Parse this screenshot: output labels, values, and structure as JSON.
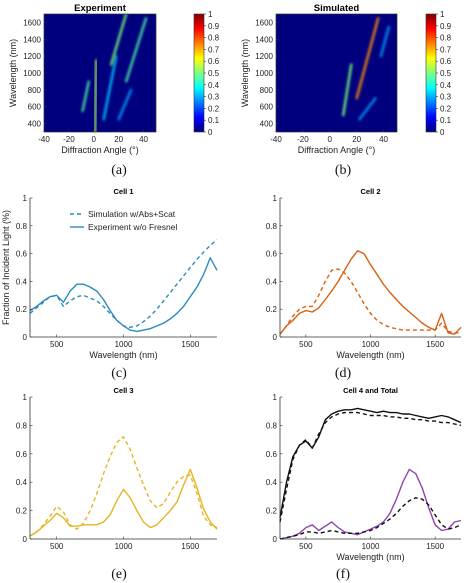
{
  "chart_data": [
    {
      "id": "a",
      "type": "heatmap",
      "panel_label": "(a)",
      "title": "Experiment",
      "xlabel": "Diffraction Angle (°)",
      "ylabel": "Wavelength (nm)",
      "xlim": [
        -40,
        50
      ],
      "ylim": [
        300,
        1700
      ],
      "xticks": [
        -40,
        -20,
        0,
        20,
        40
      ],
      "yticks": [
        400,
        600,
        800,
        1000,
        1200,
        1400,
        1600
      ],
      "colorbar": {
        "ticks": [
          0,
          0.1,
          0.2,
          0.3,
          0.4,
          0.5,
          0.6,
          0.7,
          0.8,
          0.9,
          1
        ],
        "range": [
          0,
          1
        ]
      },
      "colors": [
        "#00007f",
        "#0050ff",
        "#00d0ff",
        "#7fff7f",
        "#ffd000",
        "#ff3000",
        "#7f0000"
      ],
      "streaks": [
        {
          "x": [
            -9,
            -4
          ],
          "y": [
            550,
            900
          ],
          "intensity": 0.45
        },
        {
          "x": [
            1,
            2
          ],
          "y": [
            300,
            1150
          ],
          "intensity": 0.55
        },
        {
          "x": [
            8,
            18
          ],
          "y": [
            450,
            1200
          ],
          "intensity": 0.35
        },
        {
          "x": [
            14,
            26
          ],
          "y": [
            1100,
            1700
          ],
          "intensity": 0.5
        },
        {
          "x": [
            26,
            42
          ],
          "y": [
            900,
            1650
          ],
          "intensity": 0.45
        },
        {
          "x": [
            20,
            30
          ],
          "y": [
            450,
            800
          ],
          "intensity": 0.3
        }
      ]
    },
    {
      "id": "b",
      "type": "heatmap",
      "panel_label": "(b)",
      "title": "Simulated",
      "xlabel": "Diffraction Angle (°)",
      "ylabel": "Wavelength (nm)",
      "xlim": [
        -40,
        50
      ],
      "ylim": [
        300,
        1700
      ],
      "xticks": [
        -40,
        -20,
        0,
        20,
        40
      ],
      "yticks": [
        400,
        600,
        800,
        1000,
        1200,
        1400,
        1600
      ],
      "colorbar": {
        "ticks": [
          0,
          0.1,
          0.2,
          0.3,
          0.4,
          0.5,
          0.6,
          0.7,
          0.8,
          0.9,
          1
        ],
        "range": [
          0,
          1
        ]
      },
      "colors": [
        "#00007f",
        "#0050ff",
        "#00d0ff",
        "#7fff7f",
        "#ffd000",
        "#ff3000",
        "#7f0000"
      ],
      "streaks": [
        {
          "x": [
            0,
            0
          ],
          "y": [
            300,
            1700
          ],
          "intensity": 0.55
        },
        {
          "x": [
            10,
            16
          ],
          "y": [
            500,
            1100
          ],
          "intensity": 0.5
        },
        {
          "x": [
            20,
            36
          ],
          "y": [
            700,
            1650
          ],
          "intensity": 0.75
        },
        {
          "x": [
            22,
            34
          ],
          "y": [
            450,
            700
          ],
          "intensity": 0.3
        },
        {
          "x": [
            38,
            44
          ],
          "y": [
            1200,
            1550
          ],
          "intensity": 0.3
        }
      ]
    },
    {
      "id": "c",
      "type": "line",
      "panel_label": "(c)",
      "title": "Cell 1",
      "xlabel": "Wavelength (nm)",
      "ylabel": "Fraction of Incident Light (%)",
      "xlim": [
        300,
        1700
      ],
      "ylim": [
        0,
        1
      ],
      "xticks": [
        500,
        1000,
        1500
      ],
      "yticks": [
        0,
        0.2,
        0.4,
        0.6,
        0.8,
        1
      ],
      "color": "#2b8cbe",
      "legend": [
        "Simulation w/Abs+Scat",
        "Experiment w/o Fresnel"
      ],
      "series": [
        {
          "name": "Simulation w/Abs+Scat",
          "style": "dashed",
          "x": [
            300,
            350,
            400,
            450,
            500,
            550,
            600,
            650,
            700,
            750,
            800,
            850,
            900,
            950,
            1000,
            1050,
            1100,
            1150,
            1200,
            1250,
            1300,
            1350,
            1400,
            1450,
            1500,
            1550,
            1600,
            1650,
            1700
          ],
          "y": [
            0.17,
            0.21,
            0.25,
            0.29,
            0.3,
            0.22,
            0.26,
            0.29,
            0.3,
            0.28,
            0.26,
            0.22,
            0.17,
            0.12,
            0.08,
            0.07,
            0.08,
            0.11,
            0.15,
            0.2,
            0.26,
            0.32,
            0.38,
            0.44,
            0.5,
            0.56,
            0.61,
            0.66,
            0.7
          ]
        },
        {
          "name": "Experiment w/o Fresnel",
          "style": "solid",
          "x": [
            300,
            350,
            400,
            450,
            500,
            550,
            600,
            650,
            700,
            750,
            800,
            850,
            900,
            950,
            1000,
            1050,
            1100,
            1150,
            1200,
            1250,
            1300,
            1350,
            1400,
            1450,
            1500,
            1550,
            1600,
            1650,
            1700
          ],
          "y": [
            0.19,
            0.22,
            0.26,
            0.29,
            0.3,
            0.25,
            0.33,
            0.38,
            0.38,
            0.36,
            0.33,
            0.27,
            0.19,
            0.12,
            0.08,
            0.05,
            0.04,
            0.05,
            0.06,
            0.08,
            0.1,
            0.13,
            0.17,
            0.22,
            0.29,
            0.36,
            0.45,
            0.57,
            0.48
          ]
        }
      ]
    },
    {
      "id": "d",
      "type": "line",
      "panel_label": "(d)",
      "title": "Cell 2",
      "xlabel": "Wavelength (nm)",
      "ylabel": "",
      "xlim": [
        300,
        1700
      ],
      "ylim": [
        0,
        1
      ],
      "xticks": [
        500,
        1000,
        1500
      ],
      "yticks": [
        0,
        0.2,
        0.4,
        0.6,
        0.8,
        1
      ],
      "color": "#d95f0e",
      "series": [
        {
          "name": "",
          "style": "dashed",
          "x": [
            300,
            350,
            400,
            450,
            500,
            550,
            600,
            650,
            700,
            750,
            800,
            850,
            900,
            950,
            1000,
            1050,
            1100,
            1150,
            1200,
            1250,
            1300,
            1350,
            1400,
            1450,
            1500,
            1550,
            1600,
            1650,
            1700
          ],
          "y": [
            0.02,
            0.08,
            0.15,
            0.2,
            0.22,
            0.22,
            0.3,
            0.4,
            0.48,
            0.49,
            0.46,
            0.4,
            0.32,
            0.24,
            0.17,
            0.12,
            0.09,
            0.07,
            0.06,
            0.05,
            0.05,
            0.05,
            0.05,
            0.05,
            0.05,
            0.1,
            0.04,
            0.03,
            0.03
          ]
        },
        {
          "name": "",
          "style": "solid",
          "x": [
            300,
            350,
            400,
            450,
            500,
            550,
            600,
            650,
            700,
            750,
            800,
            850,
            900,
            950,
            1000,
            1050,
            1100,
            1150,
            1200,
            1250,
            1300,
            1350,
            1400,
            1450,
            1500,
            1550,
            1600,
            1650,
            1700
          ],
          "y": [
            0.02,
            0.08,
            0.12,
            0.17,
            0.19,
            0.18,
            0.21,
            0.27,
            0.33,
            0.4,
            0.48,
            0.56,
            0.62,
            0.6,
            0.52,
            0.45,
            0.38,
            0.32,
            0.27,
            0.22,
            0.18,
            0.14,
            0.1,
            0.07,
            0.05,
            0.17,
            0.03,
            0.02,
            0.07
          ]
        }
      ]
    },
    {
      "id": "e",
      "type": "line",
      "panel_label": "(e)",
      "title": "Cell 3",
      "xlabel": "",
      "ylabel": "",
      "xlim": [
        300,
        1700
      ],
      "ylim": [
        0,
        1
      ],
      "xticks": [
        500,
        1000,
        1500
      ],
      "yticks": [
        0,
        0.2,
        0.4,
        0.6,
        0.8,
        1
      ],
      "color": "#e6b422",
      "series": [
        {
          "name": "",
          "style": "dashed",
          "x": [
            300,
            350,
            400,
            450,
            500,
            550,
            600,
            650,
            700,
            750,
            800,
            850,
            900,
            950,
            1000,
            1050,
            1100,
            1150,
            1200,
            1250,
            1300,
            1350,
            1400,
            1450,
            1500,
            1550,
            1600,
            1650,
            1700
          ],
          "y": [
            0.02,
            0.05,
            0.1,
            0.16,
            0.23,
            0.19,
            0.1,
            0.07,
            0.11,
            0.2,
            0.32,
            0.46,
            0.58,
            0.68,
            0.72,
            0.63,
            0.5,
            0.38,
            0.27,
            0.22,
            0.25,
            0.33,
            0.4,
            0.44,
            0.45,
            0.32,
            0.16,
            0.1,
            0.08
          ]
        },
        {
          "name": "",
          "style": "solid",
          "x": [
            300,
            350,
            400,
            450,
            500,
            550,
            600,
            650,
            700,
            750,
            800,
            850,
            900,
            950,
            1000,
            1050,
            1100,
            1150,
            1200,
            1250,
            1300,
            1350,
            1400,
            1450,
            1500,
            1550,
            1600,
            1650,
            1700
          ],
          "y": [
            0.02,
            0.05,
            0.09,
            0.13,
            0.18,
            0.15,
            0.09,
            0.09,
            0.1,
            0.1,
            0.1,
            0.12,
            0.17,
            0.27,
            0.35,
            0.29,
            0.2,
            0.12,
            0.08,
            0.1,
            0.15,
            0.2,
            0.26,
            0.38,
            0.49,
            0.36,
            0.21,
            0.12,
            0.07
          ]
        }
      ]
    },
    {
      "id": "f",
      "type": "line",
      "panel_label": "(f)",
      "title": "Cell 4 and Total",
      "xlabel": "Wavelength (nm)",
      "ylabel": "",
      "xlim": [
        300,
        1700
      ],
      "ylim": [
        0,
        1
      ],
      "xticks": [
        500,
        1000,
        1500
      ],
      "yticks": [
        0,
        0.2,
        0.4,
        0.6,
        0.8,
        1
      ],
      "color": "#8e44ad",
      "series": [
        {
          "name": "",
          "style": "solid",
          "color": "#111111",
          "x": [
            300,
            350,
            400,
            450,
            500,
            550,
            600,
            650,
            700,
            750,
            800,
            850,
            900,
            950,
            1000,
            1050,
            1100,
            1150,
            1200,
            1250,
            1300,
            1350,
            1400,
            1450,
            1500,
            1550,
            1600,
            1650,
            1700
          ],
          "y": [
            0.15,
            0.4,
            0.58,
            0.66,
            0.69,
            0.64,
            0.72,
            0.84,
            0.88,
            0.9,
            0.91,
            0.91,
            0.92,
            0.91,
            0.9,
            0.89,
            0.9,
            0.89,
            0.89,
            0.88,
            0.88,
            0.87,
            0.86,
            0.85,
            0.86,
            0.87,
            0.86,
            0.84,
            0.82
          ]
        },
        {
          "name": "",
          "style": "dashed",
          "color": "#111111",
          "x": [
            300,
            350,
            400,
            450,
            500,
            550,
            600,
            650,
            700,
            750,
            800,
            850,
            900,
            950,
            1000,
            1050,
            1100,
            1150,
            1200,
            1250,
            1300,
            1350,
            1400,
            1450,
            1500,
            1550,
            1600,
            1650,
            1700
          ],
          "y": [
            0.12,
            0.35,
            0.56,
            0.66,
            0.7,
            0.64,
            0.74,
            0.82,
            0.86,
            0.88,
            0.89,
            0.89,
            0.89,
            0.88,
            0.87,
            0.87,
            0.87,
            0.86,
            0.86,
            0.85,
            0.85,
            0.84,
            0.84,
            0.83,
            0.83,
            0.82,
            0.82,
            0.81,
            0.8
          ]
        },
        {
          "name": "",
          "style": "solid",
          "color": "#8e44ad",
          "x": [
            300,
            350,
            400,
            450,
            500,
            550,
            600,
            650,
            700,
            750,
            800,
            850,
            900,
            950,
            1000,
            1050,
            1100,
            1150,
            1200,
            1250,
            1300,
            1350,
            1400,
            1450,
            1500,
            1550,
            1600,
            1650,
            1700
          ],
          "y": [
            0.0,
            0.01,
            0.02,
            0.04,
            0.08,
            0.1,
            0.06,
            0.09,
            0.12,
            0.08,
            0.05,
            0.04,
            0.03,
            0.05,
            0.07,
            0.09,
            0.12,
            0.18,
            0.28,
            0.4,
            0.49,
            0.46,
            0.36,
            0.22,
            0.1,
            0.06,
            0.07,
            0.12,
            0.13
          ]
        },
        {
          "name": "",
          "style": "dashed",
          "color": "#111111",
          "x": [
            300,
            350,
            400,
            450,
            500,
            550,
            600,
            650,
            700,
            750,
            800,
            850,
            900,
            950,
            1000,
            1050,
            1100,
            1150,
            1200,
            1250,
            1300,
            1350,
            1400,
            1450,
            1500,
            1550,
            1600,
            1650,
            1700
          ],
          "y": [
            0.0,
            0.01,
            0.02,
            0.03,
            0.05,
            0.05,
            0.04,
            0.05,
            0.06,
            0.05,
            0.04,
            0.04,
            0.04,
            0.05,
            0.06,
            0.08,
            0.11,
            0.14,
            0.18,
            0.23,
            0.27,
            0.29,
            0.28,
            0.24,
            0.17,
            0.1,
            0.07,
            0.08,
            0.1
          ]
        }
      ]
    }
  ]
}
